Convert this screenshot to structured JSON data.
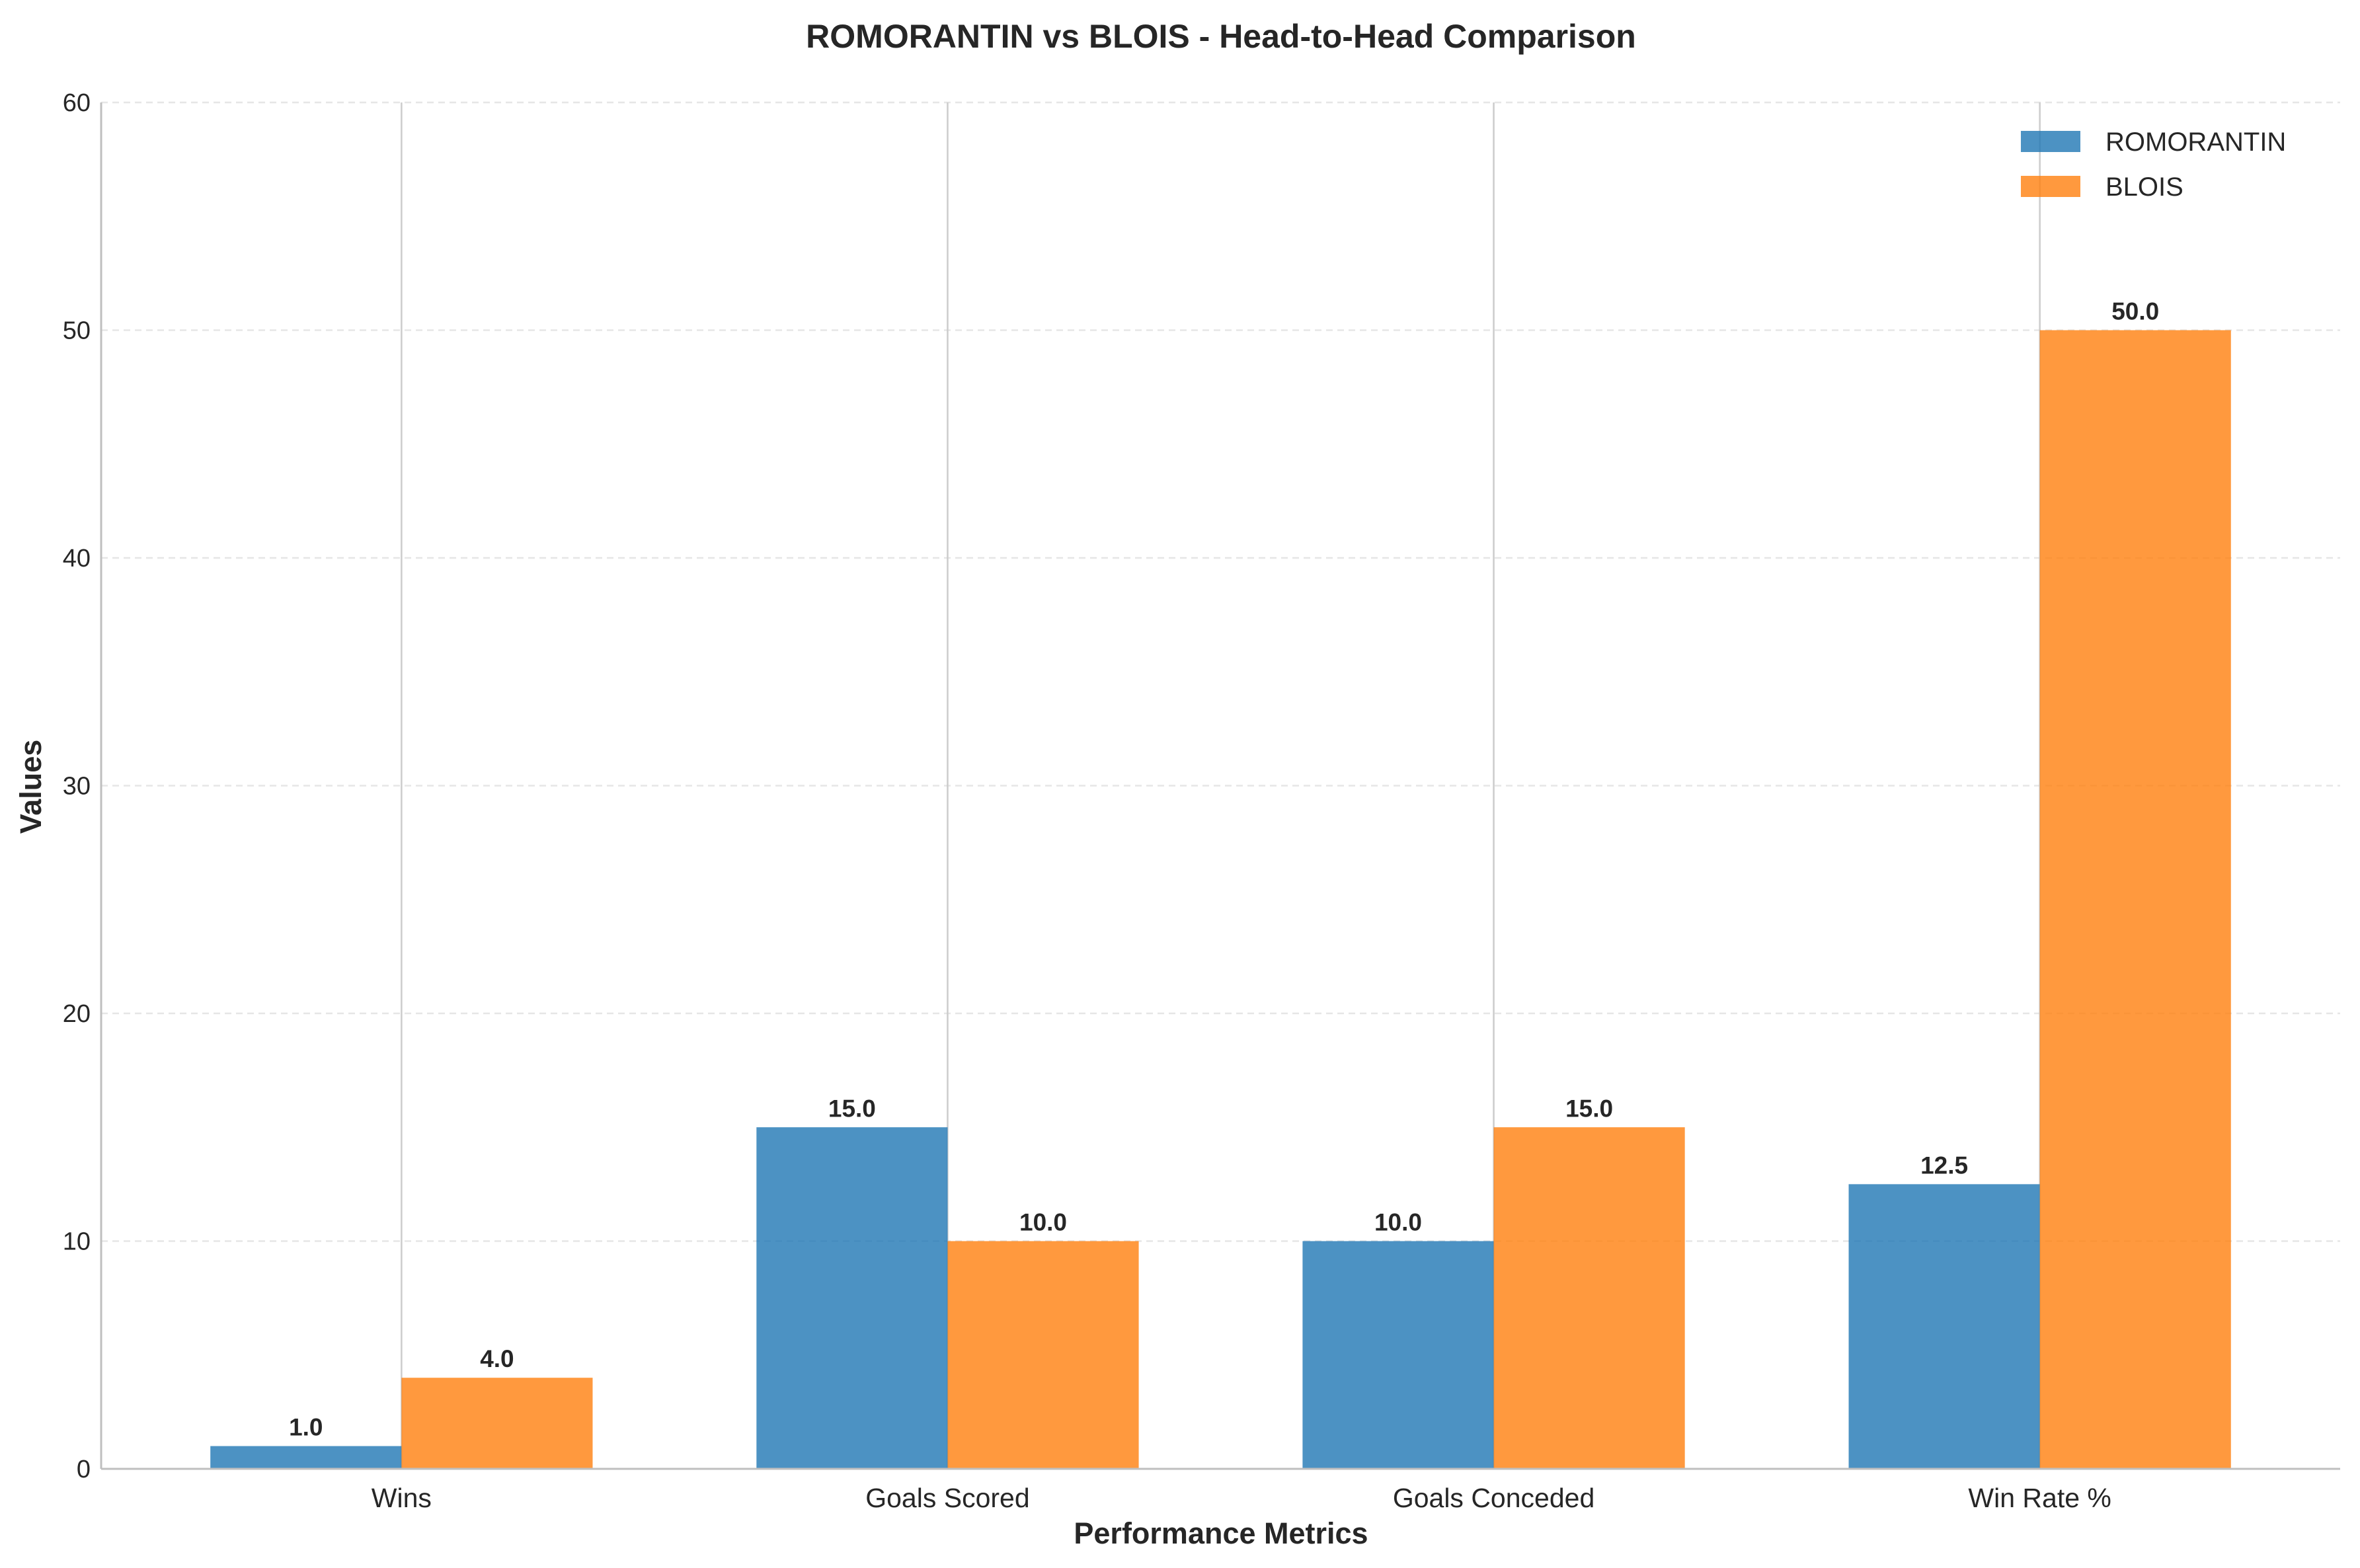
{
  "chart_data": {
    "type": "bar",
    "title": "ROMORANTIN vs BLOIS - Head-to-Head Comparison",
    "xlabel": "Performance Metrics",
    "ylabel": "Values",
    "categories": [
      "Wins",
      "Goals Scored",
      "Goals Conceded",
      "Win Rate %"
    ],
    "series": [
      {
        "name": "ROMORANTIN",
        "values": [
          1.0,
          15.0,
          10.0,
          12.5
        ],
        "color": "#1f77b4"
      },
      {
        "name": "BLOIS",
        "values": [
          4.0,
          10.0,
          15.0,
          50.0
        ],
        "color": "#ff7f0e"
      }
    ],
    "value_labels": [
      [
        "1.0",
        "15.0",
        "10.0",
        "12.5"
      ],
      [
        "4.0",
        "10.0",
        "15.0",
        "50.0"
      ]
    ],
    "ylim": [
      0,
      60
    ],
    "yticks": [
      0,
      10,
      20,
      30,
      40,
      50,
      60
    ],
    "grid": "y-dashed",
    "legend_position": "top-right"
  }
}
